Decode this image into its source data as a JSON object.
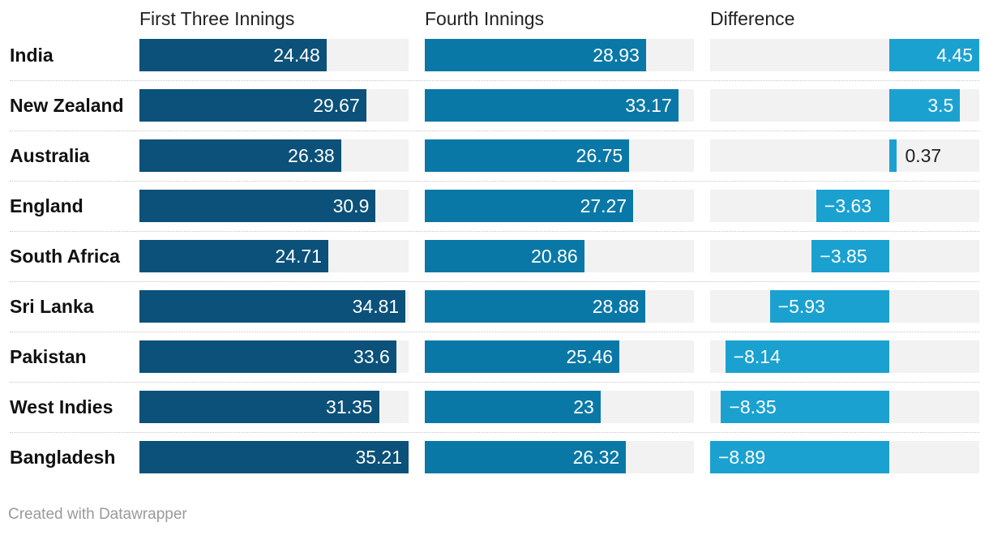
{
  "footer": "Created with Datawrapper",
  "colors": {
    "first": "#0b5179",
    "fourth": "#0a78a6",
    "difference": "#1ba1d0",
    "track": "#f2f2f2"
  },
  "chart_data": {
    "type": "bar",
    "orientation": "horizontal",
    "title": "",
    "categories": [
      "India",
      "New Zealand",
      "Australia",
      "England",
      "South Africa",
      "Sri Lanka",
      "Pakistan",
      "West Indies",
      "Bangladesh"
    ],
    "series": [
      {
        "name": "First Three Innings",
        "values": [
          24.48,
          29.67,
          26.38,
          30.9,
          24.71,
          34.81,
          33.6,
          31.35,
          35.21
        ],
        "labels": [
          "24.48",
          "29.67",
          "26.38",
          "30.9",
          "24.71",
          "34.81",
          "33.6",
          "31.35",
          "35.21"
        ]
      },
      {
        "name": "Fourth Innings",
        "values": [
          28.93,
          33.17,
          26.75,
          27.27,
          20.86,
          28.88,
          25.46,
          23,
          26.32
        ],
        "labels": [
          "28.93",
          "33.17",
          "26.75",
          "27.27",
          "20.86",
          "28.88",
          "25.46",
          "23",
          "26.32"
        ]
      },
      {
        "name": "Difference",
        "values": [
          4.45,
          3.5,
          0.37,
          -3.63,
          -3.85,
          -5.93,
          -8.14,
          -8.35,
          -8.89
        ],
        "labels": [
          "4.45",
          "3.5",
          "0.37",
          "−3.63",
          "−3.85",
          "−5.93",
          "−8.14",
          "−8.35",
          "−8.89"
        ]
      }
    ],
    "xlim": [
      [
        0,
        35.21
      ],
      [
        0,
        35.21
      ],
      [
        -8.89,
        4.45
      ]
    ],
    "grid": false,
    "legend": "none"
  }
}
